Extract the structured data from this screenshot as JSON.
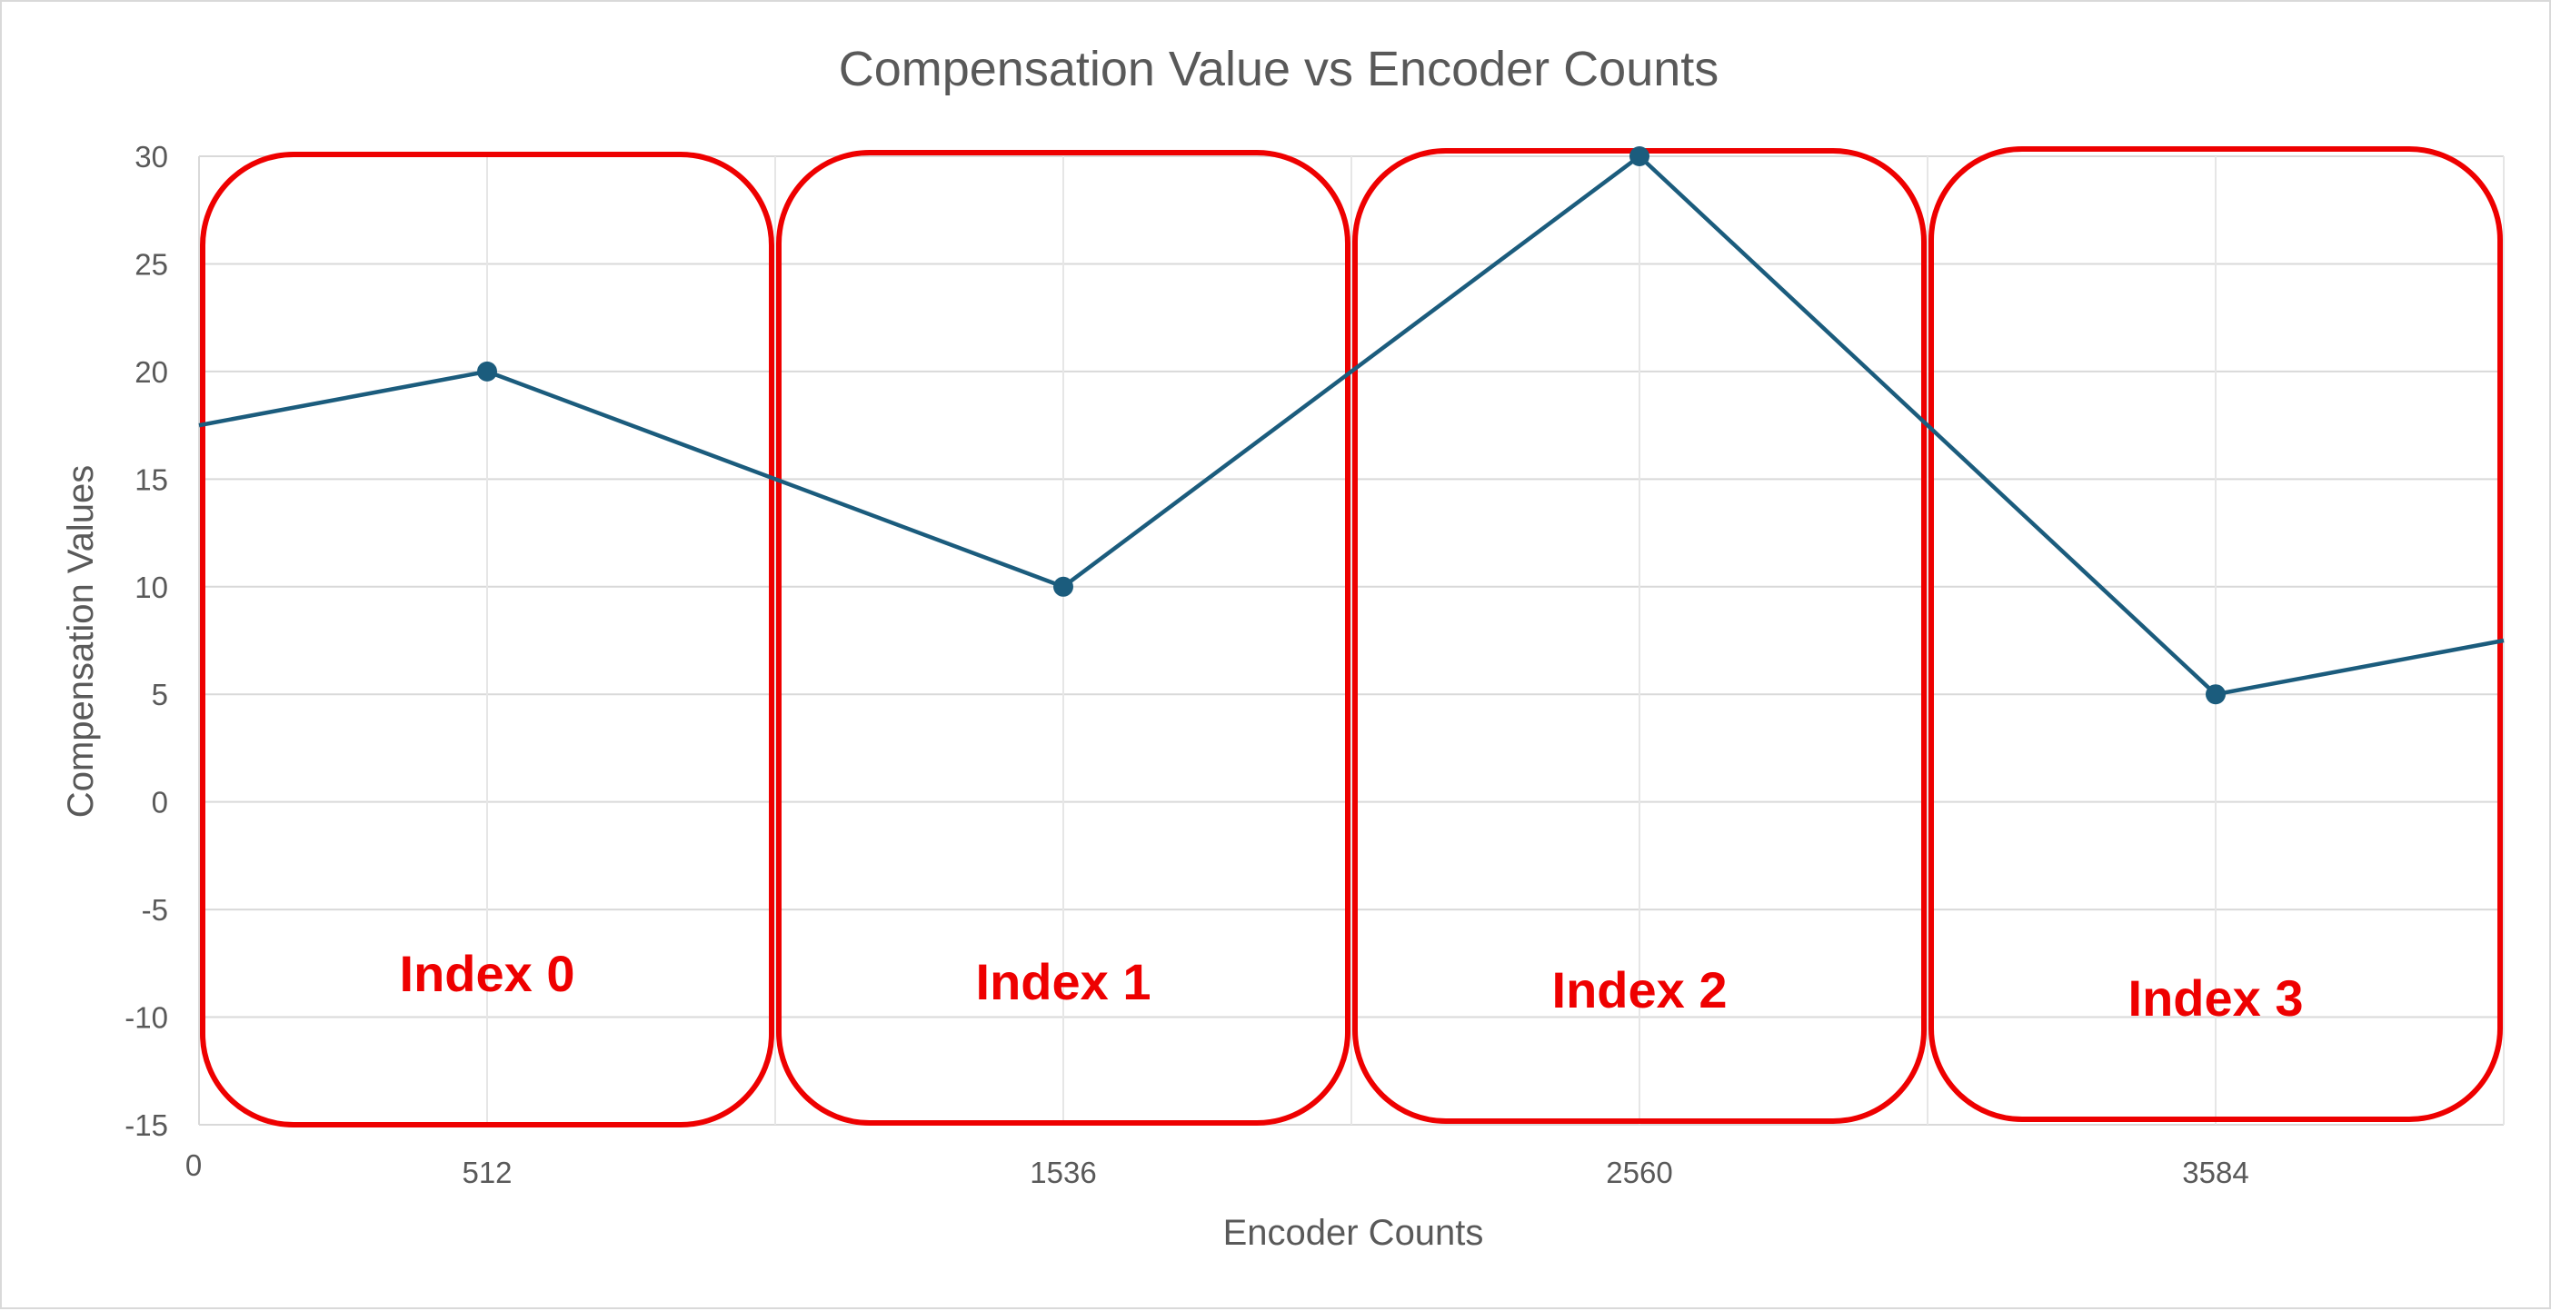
{
  "chart_data": {
    "type": "line",
    "title": "Compensation Value vs Encoder Counts",
    "xlabel": "Encoder Counts",
    "ylabel": "Compensation Values",
    "xlim": [
      0,
      4096
    ],
    "ylim": [
      -15,
      30
    ],
    "x_ticks": [
      {
        "value": 0,
        "label": "0"
      },
      {
        "value": 512,
        "label": "512"
      },
      {
        "value": 1536,
        "label": "1536"
      },
      {
        "value": 2560,
        "label": "2560"
      },
      {
        "value": 3584,
        "label": "3584"
      }
    ],
    "y_ticks": [
      30,
      25,
      20,
      15,
      10,
      5,
      0,
      -5,
      -10,
      -15
    ],
    "x_gridlines": [
      512,
      1024,
      1536,
      2048,
      2560,
      3072,
      3584,
      4096
    ],
    "grid": true,
    "series": [
      {
        "color": "#1b5c7d",
        "points": [
          {
            "x": 512,
            "y": 20
          },
          {
            "x": 1536,
            "y": 10
          },
          {
            "x": 2560,
            "y": 30
          },
          {
            "x": 3584,
            "y": 5
          }
        ],
        "line_extends_from": {
          "x": 0,
          "y": 17.5
        },
        "line_extends_to": {
          "x": 4096,
          "y": 7.5
        }
      }
    ],
    "annotations": [
      {
        "label": "Index 0",
        "x_range": [
          0,
          1024
        ],
        "color": "#ee0000"
      },
      {
        "label": "Index 1",
        "x_range": [
          1024,
          2048
        ],
        "color": "#ee0000"
      },
      {
        "label": "Index 2",
        "x_range": [
          2048,
          3072
        ],
        "color": "#ee0000"
      },
      {
        "label": "Index 3",
        "x_range": [
          3072,
          4096
        ],
        "color": "#ee0000"
      }
    ]
  }
}
